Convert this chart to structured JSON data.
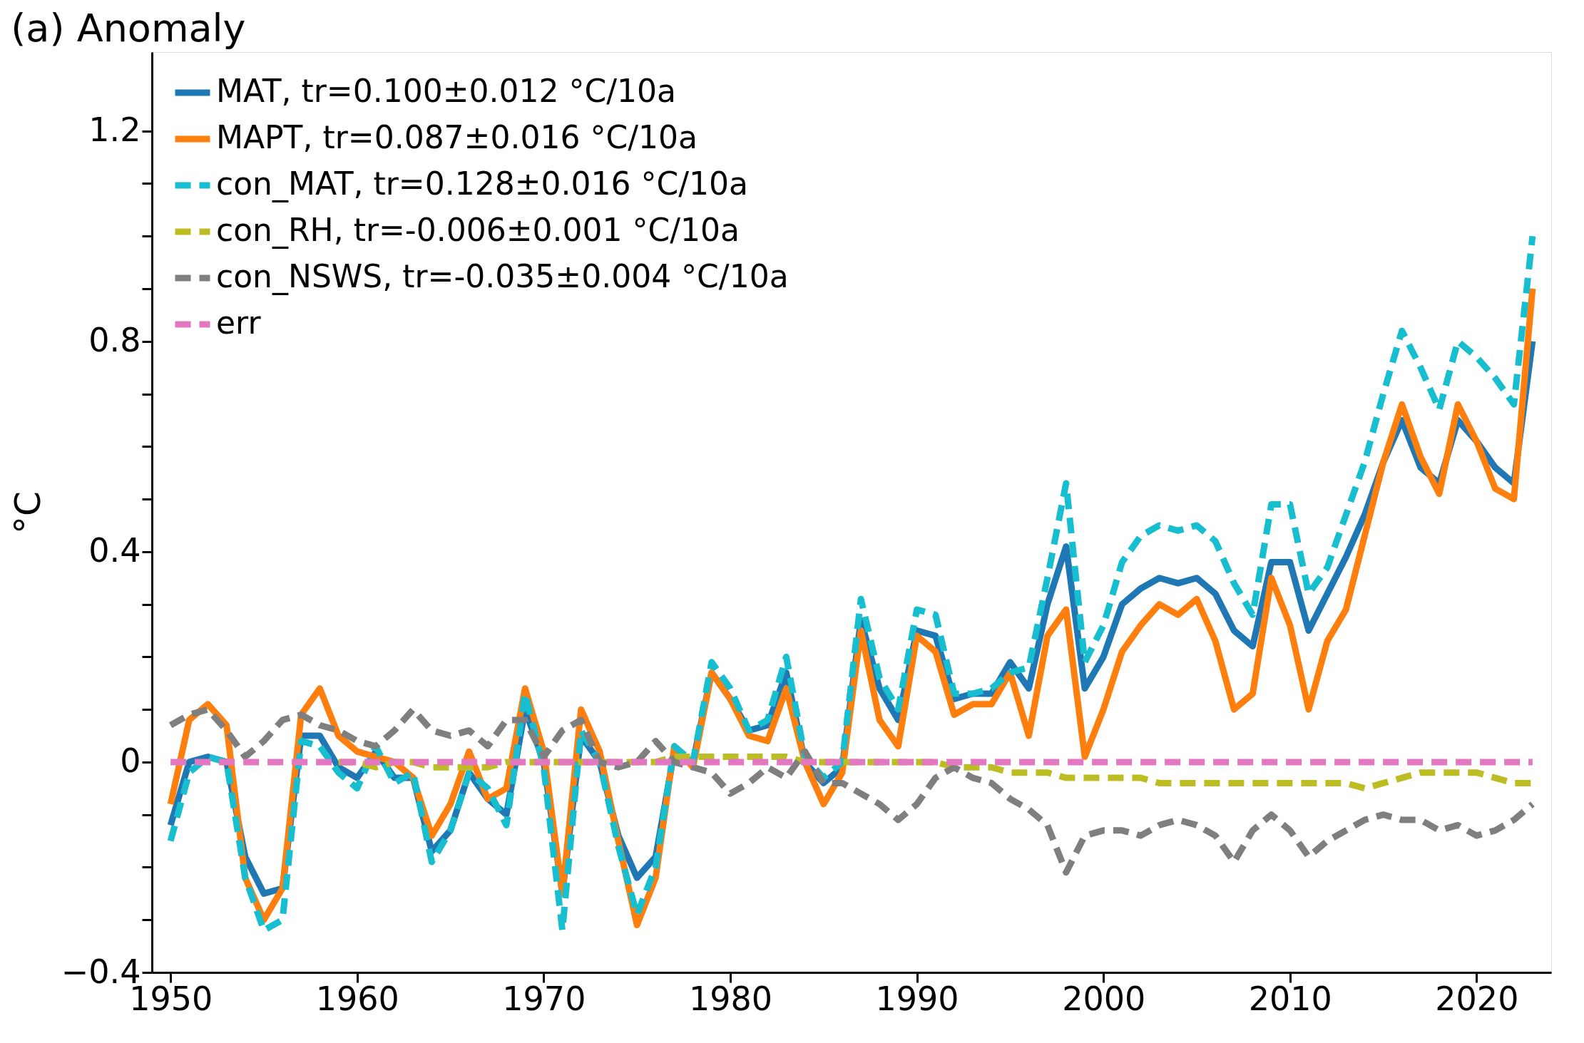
{
  "chart_data": {
    "type": "line",
    "title": "(a) Anomaly",
    "ylabel": "°C",
    "x": [
      1950,
      1951,
      1952,
      1953,
      1954,
      1955,
      1956,
      1957,
      1958,
      1959,
      1960,
      1961,
      1962,
      1963,
      1964,
      1965,
      1966,
      1967,
      1968,
      1969,
      1970,
      1971,
      1972,
      1973,
      1974,
      1975,
      1976,
      1977,
      1978,
      1979,
      1980,
      1981,
      1982,
      1983,
      1984,
      1985,
      1986,
      1987,
      1988,
      1989,
      1990,
      1991,
      1992,
      1993,
      1994,
      1995,
      1996,
      1997,
      1998,
      1999,
      2000,
      2001,
      2002,
      2003,
      2004,
      2005,
      2006,
      2007,
      2008,
      2009,
      2010,
      2011,
      2012,
      2013,
      2014,
      2015,
      2016,
      2017,
      2018,
      2019,
      2020,
      2021,
      2022,
      2023
    ],
    "series": [
      {
        "name": "MAT, tr=0.100±0.012 °C/10a",
        "color": "#1f77b4",
        "line_style": "solid",
        "values": [
          -0.12,
          0.0,
          0.01,
          0.0,
          -0.18,
          -0.25,
          -0.24,
          0.05,
          0.05,
          -0.01,
          -0.03,
          0.02,
          -0.03,
          -0.03,
          -0.17,
          -0.13,
          -0.02,
          -0.07,
          -0.1,
          0.1,
          0.0,
          -0.25,
          0.05,
          0.0,
          -0.14,
          -0.22,
          -0.18,
          0.02,
          0.0,
          0.17,
          0.12,
          0.06,
          0.07,
          0.17,
          0.0,
          -0.04,
          -0.01,
          0.27,
          0.14,
          0.08,
          0.25,
          0.24,
          0.12,
          0.13,
          0.13,
          0.19,
          0.14,
          0.3,
          0.41,
          0.14,
          0.2,
          0.3,
          0.33,
          0.35,
          0.34,
          0.35,
          0.32,
          0.25,
          0.22,
          0.38,
          0.38,
          0.25,
          0.32,
          0.39,
          0.47,
          0.57,
          0.65,
          0.56,
          0.53,
          0.65,
          0.61,
          0.56,
          0.53,
          0.8
        ]
      },
      {
        "name": "MAPT, tr=0.087±0.016 °C/10a",
        "color": "#ff7f0e",
        "line_style": "solid",
        "values": [
          -0.08,
          0.08,
          0.11,
          0.07,
          -0.22,
          -0.3,
          -0.24,
          0.09,
          0.14,
          0.05,
          0.02,
          0.01,
          0.0,
          -0.03,
          -0.14,
          -0.08,
          0.02,
          -0.07,
          -0.05,
          0.14,
          0.02,
          -0.25,
          0.1,
          0.02,
          -0.15,
          -0.31,
          -0.22,
          0.03,
          -0.01,
          0.17,
          0.12,
          0.05,
          0.04,
          0.14,
          0.0,
          -0.08,
          -0.02,
          0.25,
          0.08,
          0.03,
          0.24,
          0.21,
          0.09,
          0.11,
          0.11,
          0.17,
          0.05,
          0.24,
          0.29,
          0.01,
          0.1,
          0.21,
          0.26,
          0.3,
          0.28,
          0.31,
          0.23,
          0.1,
          0.13,
          0.35,
          0.26,
          0.1,
          0.23,
          0.29,
          0.43,
          0.57,
          0.68,
          0.58,
          0.51,
          0.68,
          0.61,
          0.52,
          0.5,
          0.9
        ]
      },
      {
        "name": "con_MAT, tr=0.128±0.016 °C/10a",
        "color": "#17becf",
        "line_style": "dashed",
        "values": [
          -0.15,
          -0.02,
          0.01,
          0.0,
          -0.22,
          -0.32,
          -0.3,
          0.04,
          0.03,
          -0.02,
          -0.05,
          0.03,
          -0.04,
          -0.02,
          -0.19,
          -0.13,
          -0.02,
          -0.05,
          -0.12,
          0.13,
          -0.01,
          -0.32,
          0.06,
          0.0,
          -0.16,
          -0.29,
          -0.2,
          0.03,
          0.0,
          0.19,
          0.14,
          0.06,
          0.08,
          0.2,
          0.01,
          -0.03,
          0.0,
          0.31,
          0.16,
          0.1,
          0.29,
          0.28,
          0.13,
          0.13,
          0.14,
          0.17,
          0.18,
          0.35,
          0.53,
          0.19,
          0.26,
          0.38,
          0.43,
          0.45,
          0.44,
          0.45,
          0.42,
          0.34,
          0.28,
          0.49,
          0.49,
          0.32,
          0.37,
          0.47,
          0.57,
          0.7,
          0.82,
          0.75,
          0.67,
          0.8,
          0.77,
          0.73,
          0.68,
          1.0
        ]
      },
      {
        "name": "con_RH, tr=-0.006±0.001 °C/10a",
        "color": "#bcbd22",
        "line_style": "dashed",
        "values": [
          null,
          null,
          null,
          null,
          null,
          null,
          null,
          null,
          null,
          0.0,
          0.0,
          -0.01,
          0.0,
          0.0,
          -0.01,
          -0.01,
          -0.01,
          -0.01,
          0.0,
          0.0,
          0.0,
          0.0,
          0.0,
          0.0,
          0.0,
          0.0,
          0.0,
          0.01,
          0.01,
          0.01,
          0.01,
          0.01,
          0.01,
          0.01,
          0.0,
          0.0,
          0.0,
          0.0,
          0.0,
          0.0,
          0.0,
          0.0,
          -0.01,
          -0.01,
          -0.01,
          -0.02,
          -0.02,
          -0.02,
          -0.03,
          -0.03,
          -0.03,
          -0.03,
          -0.03,
          -0.04,
          -0.04,
          -0.04,
          -0.04,
          -0.04,
          -0.04,
          -0.04,
          -0.04,
          -0.04,
          -0.04,
          -0.04,
          -0.05,
          -0.04,
          -0.03,
          -0.02,
          -0.02,
          -0.02,
          -0.02,
          -0.03,
          -0.04,
          -0.04
        ]
      },
      {
        "name": "con_NSWS, tr=-0.035±0.004 °C/10a",
        "color": "#7f7f7f",
        "line_style": "dashed",
        "values": [
          0.07,
          0.09,
          0.1,
          0.06,
          0.01,
          0.04,
          0.08,
          0.09,
          0.07,
          0.06,
          0.04,
          0.03,
          0.06,
          0.1,
          0.06,
          0.05,
          0.06,
          0.03,
          0.08,
          0.08,
          0.01,
          0.06,
          0.08,
          0.0,
          -0.01,
          0.0,
          0.04,
          0.0,
          -0.01,
          -0.02,
          -0.06,
          -0.04,
          -0.01,
          -0.03,
          0.02,
          -0.04,
          -0.04,
          -0.06,
          -0.08,
          -0.11,
          -0.08,
          -0.03,
          -0.01,
          -0.03,
          -0.04,
          -0.07,
          -0.09,
          -0.12,
          -0.21,
          -0.14,
          -0.13,
          -0.13,
          -0.14,
          -0.12,
          -0.11,
          -0.12,
          -0.14,
          -0.19,
          -0.13,
          -0.1,
          -0.13,
          -0.18,
          -0.15,
          -0.13,
          -0.11,
          -0.1,
          -0.11,
          -0.11,
          -0.13,
          -0.12,
          -0.14,
          -0.13,
          -0.11,
          -0.08
        ]
      },
      {
        "name": "err",
        "color": "#e377c2",
        "line_style": "dashed",
        "values": [
          0.0,
          0.0,
          0.0,
          0.0,
          0.0,
          0.0,
          0.0,
          0.0,
          0.0,
          0.0,
          0.0,
          0.0,
          0.0,
          0.0,
          0.0,
          0.0,
          0.0,
          0.0,
          0.0,
          0.0,
          0.0,
          0.0,
          0.0,
          0.0,
          0.0,
          0.0,
          0.0,
          0.0,
          0.0,
          0.0,
          0.0,
          0.0,
          0.0,
          0.0,
          0.0,
          0.0,
          0.0,
          0.0,
          0.0,
          0.0,
          0.0,
          0.0,
          0.0,
          0.0,
          0.0,
          0.0,
          0.0,
          0.0,
          0.0,
          0.0,
          0.0,
          0.0,
          0.0,
          0.0,
          0.0,
          0.0,
          0.0,
          0.0,
          0.0,
          0.0,
          0.0,
          0.0,
          0.0,
          0.0,
          0.0,
          0.0,
          0.0,
          0.0,
          0.0,
          0.0,
          0.0,
          0.0,
          0.0,
          0.0
        ]
      }
    ],
    "xlim": [
      1949,
      2024
    ],
    "xticks": [
      1950,
      1960,
      1970,
      1980,
      1990,
      2000,
      2010,
      2020
    ],
    "ylim": [
      -0.4,
      1.35
    ],
    "yticks": [
      {
        "value": -0.4,
        "label": "−0.4"
      },
      {
        "value": -0.3,
        "label": null
      },
      {
        "value": -0.2,
        "label": null
      },
      {
        "value": -0.1,
        "label": null
      },
      0,
      {
        "value": 0.1,
        "label": null
      },
      {
        "value": 0.2,
        "label": null
      },
      {
        "value": 0.3,
        "label": null
      },
      0.4,
      {
        "value": 0.5,
        "label": null
      },
      {
        "value": 0.6,
        "label": null
      },
      {
        "value": 0.7,
        "label": null
      },
      0.8,
      {
        "value": 0.9,
        "label": null
      },
      {
        "value": 1.0,
        "label": null
      },
      {
        "value": 1.1,
        "label": null
      },
      1.2
    ],
    "grid": false,
    "legend": "top left",
    "marker": "none"
  }
}
